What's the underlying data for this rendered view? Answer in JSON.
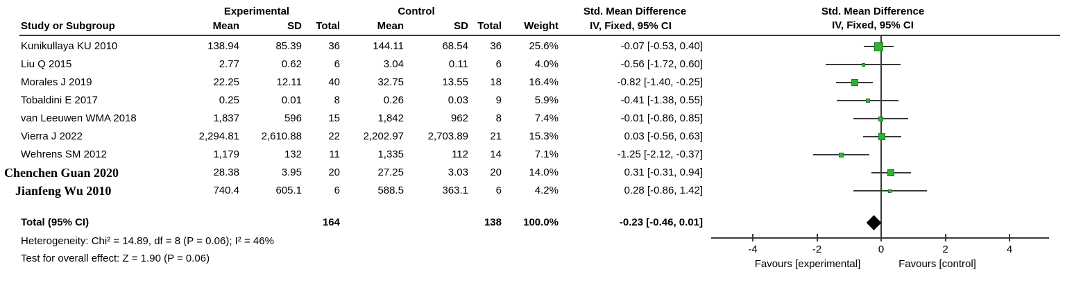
{
  "header": {
    "group1": "Experimental",
    "group2": "Control",
    "smd_text_col": "Std. Mean Difference",
    "smd_plot_col": "Std. Mean Difference",
    "study_col": "Study or Subgroup",
    "mean": "Mean",
    "sd": "SD",
    "total": "Total",
    "weight": "Weight",
    "method": "IV, Fixed, 95% CI",
    "method_plot": "IV, Fixed, 95% CI"
  },
  "chart_data": {
    "type": "forest",
    "effect_measure": "Std. Mean Difference",
    "model": "IV, Fixed, 95% CI",
    "marker_color": "#2db52d",
    "marker_border": "#1f7a1f",
    "line_color": "#3a3a3a",
    "studies": [
      {
        "name": "Kunikullaya KU 2010",
        "exp_mean": "138.94",
        "exp_sd": "85.39",
        "exp_total": "36",
        "ctrl_mean": "144.11",
        "ctrl_sd": "68.54",
        "ctrl_total": "36",
        "weight": "25.6%",
        "ci_text": "-0.07 [-0.53, 0.40]",
        "effect": -0.07,
        "ci_low": -0.53,
        "ci_high": 0.4,
        "weight_pct": 25.6
      },
      {
        "name": "Liu Q 2015",
        "exp_mean": "2.77",
        "exp_sd": "0.62",
        "exp_total": "6",
        "ctrl_mean": "3.04",
        "ctrl_sd": "0.11",
        "ctrl_total": "6",
        "weight": "4.0%",
        "ci_text": "-0.56 [-1.72, 0.60]",
        "effect": -0.56,
        "ci_low": -1.72,
        "ci_high": 0.6,
        "weight_pct": 4.0
      },
      {
        "name": "Morales J 2019",
        "exp_mean": "22.25",
        "exp_sd": "12.11",
        "exp_total": "40",
        "ctrl_mean": "32.75",
        "ctrl_sd": "13.55",
        "ctrl_total": "18",
        "weight": "16.4%",
        "ci_text": "-0.82 [-1.40, -0.25]",
        "effect": -0.82,
        "ci_low": -1.4,
        "ci_high": -0.25,
        "weight_pct": 16.4
      },
      {
        "name": "Tobaldini E 2017",
        "exp_mean": "0.25",
        "exp_sd": "0.01",
        "exp_total": "8",
        "ctrl_mean": "0.26",
        "ctrl_sd": "0.03",
        "ctrl_total": "9",
        "weight": "5.9%",
        "ci_text": "-0.41 [-1.38, 0.55]",
        "effect": -0.41,
        "ci_low": -1.38,
        "ci_high": 0.55,
        "weight_pct": 5.9
      },
      {
        "name": "van Leeuwen WMA 2018",
        "exp_mean": "1,837",
        "exp_sd": "596",
        "exp_total": "15",
        "ctrl_mean": "1,842",
        "ctrl_sd": "962",
        "ctrl_total": "8",
        "weight": "7.4%",
        "ci_text": "-0.01 [-0.86, 0.85]",
        "effect": -0.01,
        "ci_low": -0.86,
        "ci_high": 0.85,
        "weight_pct": 7.4
      },
      {
        "name": "Vierra J 2022",
        "exp_mean": "2,294.81",
        "exp_sd": "2,610.88",
        "exp_total": "22",
        "ctrl_mean": "2,202.97",
        "ctrl_sd": "2,703.89",
        "ctrl_total": "21",
        "weight": "15.3%",
        "ci_text": "0.03 [-0.56, 0.63]",
        "effect": 0.03,
        "ci_low": -0.56,
        "ci_high": 0.63,
        "weight_pct": 15.3
      },
      {
        "name": "Wehrens SM 2012",
        "exp_mean": "1,179",
        "exp_sd": "132",
        "exp_total": "11",
        "ctrl_mean": "1,335",
        "ctrl_sd": "112",
        "ctrl_total": "14",
        "weight": "7.1%",
        "ci_text": "-1.25 [-2.12, -0.37]",
        "effect": -1.25,
        "ci_low": -2.12,
        "ci_high": -0.37,
        "weight_pct": 7.1
      },
      {
        "name": "Chenchen Guan 2020",
        "exp_mean": "28.38",
        "exp_sd": "3.95",
        "exp_total": "20",
        "ctrl_mean": "27.25",
        "ctrl_sd": "3.03",
        "ctrl_total": "20",
        "weight": "14.0%",
        "ci_text": "0.31 [-0.31, 0.94]",
        "effect": 0.31,
        "ci_low": -0.31,
        "ci_high": 0.94,
        "weight_pct": 14.0
      },
      {
        "name": "Jianfeng Wu 2010",
        "exp_mean": "740.4",
        "exp_sd": "605.1",
        "exp_total": "6",
        "ctrl_mean": "588.5",
        "ctrl_sd": "363.1",
        "ctrl_total": "6",
        "weight": "4.2%",
        "ci_text": "0.28 [-0.86, 1.42]",
        "effect": 0.28,
        "ci_low": -0.86,
        "ci_high": 1.42,
        "weight_pct": 4.2
      }
    ],
    "total": {
      "label": "Total (95% CI)",
      "exp_total": "164",
      "ctrl_total": "138",
      "weight": "100.0%",
      "ci_text": "-0.23 [-0.46, 0.01]",
      "effect": -0.23,
      "ci_low": -0.46,
      "ci_high": 0.01
    },
    "heterogeneity": "Heterogeneity: Chi² = 14.89, df = 8 (P = 0.06); I² = 46%",
    "overall_effect": "Test for overall effect: Z = 1.90 (P = 0.06)",
    "axis": {
      "ticks": [
        -4,
        -2,
        0,
        2,
        4
      ],
      "min": -5.3,
      "max": 5.2,
      "favours_left": "Favours [experimental]",
      "favours_right": "Favours [control]"
    }
  }
}
